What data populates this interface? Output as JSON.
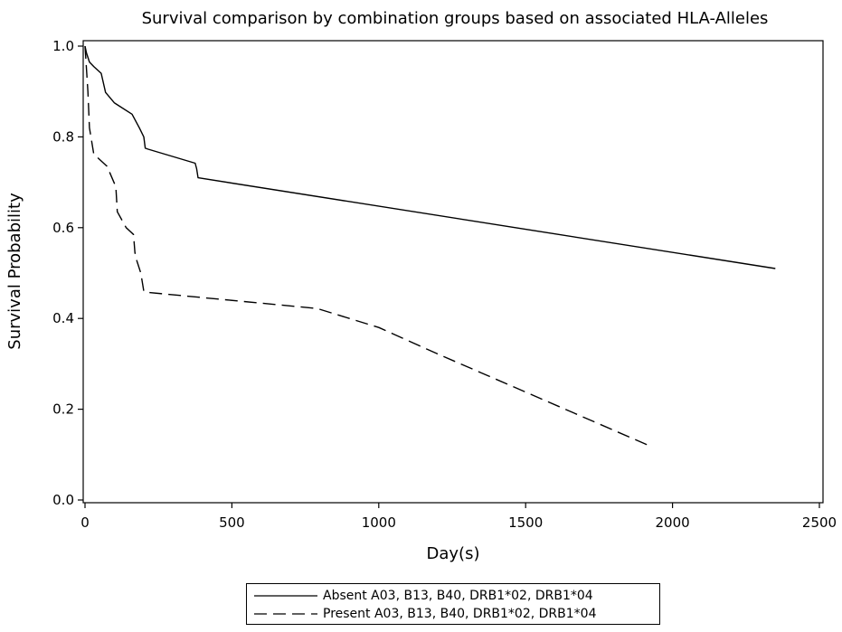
{
  "chart_data": {
    "type": "line",
    "title": "Survival comparison by combination groups based on associated HLA-Alleles",
    "xlabel": "Day(s)",
    "ylabel": "Survival Probability",
    "xlim": [
      0,
      2500
    ],
    "ylim": [
      0,
      1.0
    ],
    "x_ticks": [
      0,
      500,
      1000,
      1500,
      2000,
      2500
    ],
    "y_ticks": [
      0.0,
      0.2,
      0.4,
      0.6,
      0.8,
      1.0
    ],
    "x_tick_labels": [
      "0",
      "500",
      "1000",
      "1500",
      "2000",
      "2500"
    ],
    "y_tick_labels": [
      "0.0",
      "0.2",
      "0.4",
      "0.6",
      "0.8",
      "1.0"
    ],
    "grid": false,
    "legend_position": "bottom",
    "series": [
      {
        "name": "Absent A03, B13, B40, DRB1*02, DRB1*04",
        "style": "solid",
        "color": "#000000",
        "x": [
          0,
          5,
          15,
          30,
          55,
          70,
          100,
          160,
          185,
          200,
          205,
          215,
          375,
          380,
          385,
          2350
        ],
        "y": [
          1.0,
          0.985,
          0.965,
          0.955,
          0.94,
          0.898,
          0.875,
          0.85,
          0.82,
          0.8,
          0.775,
          0.773,
          0.742,
          0.73,
          0.71,
          0.51
        ]
      },
      {
        "name": "Present A03, B13, B40, DRB1*02, DRB1*04",
        "style": "dashed",
        "color": "#000000",
        "x": [
          0,
          10,
          15,
          30,
          75,
          105,
          110,
          140,
          165,
          170,
          175,
          190,
          200,
          205,
          790,
          1000,
          1200,
          1920
        ],
        "y": [
          1.0,
          0.9,
          0.82,
          0.762,
          0.735,
          0.69,
          0.635,
          0.6,
          0.585,
          0.545,
          0.53,
          0.5,
          0.46,
          0.458,
          0.422,
          0.38,
          0.322,
          0.12
        ]
      }
    ]
  }
}
